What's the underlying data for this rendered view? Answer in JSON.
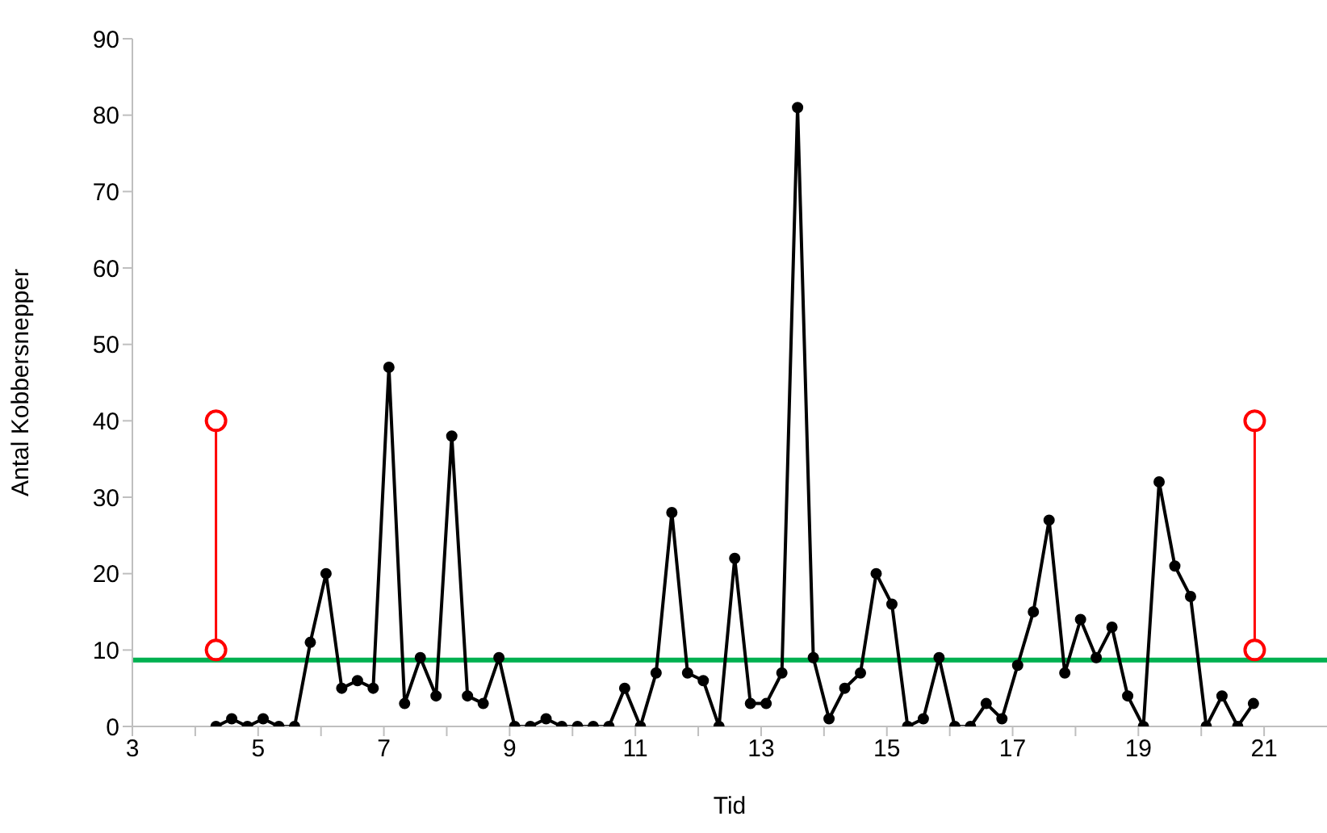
{
  "chart_data": {
    "type": "line",
    "xlabel": "Tid",
    "ylabel": "Antal Kobbersnepper",
    "xlim": [
      3,
      22
    ],
    "xticks": [
      3,
      {
        "value": 4,
        "label": null
      },
      5,
      {
        "value": 6,
        "label": null
      },
      7,
      {
        "value": 8,
        "label": null
      },
      9,
      {
        "value": 10,
        "label": null
      },
      11,
      {
        "value": 12,
        "label": null
      },
      13,
      {
        "value": 14,
        "label": null
      },
      15,
      {
        "value": 16,
        "label": null
      },
      17,
      {
        "value": 18,
        "label": null
      },
      19,
      {
        "value": 20,
        "label": null
      },
      21
    ],
    "ylim": [
      0,
      90
    ],
    "yticks": [
      0,
      10,
      20,
      30,
      40,
      50,
      60,
      70,
      80,
      90
    ],
    "grid": false,
    "legend": false,
    "marker": "circle",
    "line_style": "solid",
    "series": [
      {
        "color": "#000000",
        "x": [
          4.33,
          4.58,
          4.83,
          5.08,
          5.33,
          5.58,
          5.83,
          6.08,
          6.33,
          6.58,
          6.83,
          7.08,
          7.33,
          7.58,
          7.83,
          8.08,
          8.33,
          8.58,
          8.83,
          9.08,
          9.33,
          9.58,
          9.83,
          10.08,
          10.33,
          10.58,
          10.83,
          11.08,
          11.33,
          11.58,
          11.83,
          12.08,
          12.33,
          12.58,
          12.83,
          13.08,
          13.33,
          13.58,
          13.83,
          14.08,
          14.33,
          14.58,
          14.83,
          15.08,
          15.33,
          15.58,
          15.83,
          16.08,
          16.33,
          16.58,
          16.83,
          17.08,
          17.33,
          17.58,
          17.83,
          18.08,
          18.33,
          18.58,
          18.83,
          19.08,
          19.33,
          19.58,
          19.83,
          20.08,
          20.33,
          20.58,
          20.83
        ],
        "values": [
          0,
          1,
          0,
          1,
          0,
          0,
          11,
          20,
          5,
          6,
          5,
          47,
          3,
          9,
          4,
          38,
          4,
          3,
          9,
          0,
          0,
          1,
          0,
          0,
          0,
          0,
          5,
          0,
          7,
          28,
          7,
          6,
          0,
          22,
          3,
          3,
          7,
          81,
          9,
          1,
          5,
          7,
          20,
          16,
          0,
          1,
          9,
          0,
          0,
          3,
          1,
          8,
          15,
          27,
          7,
          14,
          9,
          13,
          4,
          0,
          32,
          21,
          17,
          0,
          4,
          0,
          3
        ]
      },
      {
        "color": "#ff0000",
        "x": [
          4.33,
          4.33
        ],
        "values": [
          10,
          40
        ]
      },
      {
        "color": "#ff0000",
        "x": [
          20.85,
          20.85
        ],
        "values": [
          10,
          40
        ]
      }
    ],
    "ref_lines": [
      {
        "axis": "y",
        "value": 8.7,
        "color": "#00b050",
        "line_style": "solid"
      }
    ]
  }
}
